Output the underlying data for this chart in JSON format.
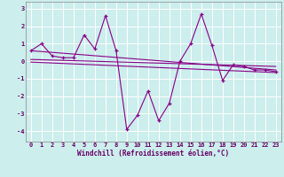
{
  "xlabel": "Windchill (Refroidissement éolien,°C)",
  "background_color": "#cceeed",
  "grid_color": "#ffffff",
  "line_color": "#880088",
  "xlim": [
    -0.5,
    23.5
  ],
  "ylim": [
    -4.6,
    3.4
  ],
  "yticks": [
    -4,
    -3,
    -2,
    -1,
    0,
    1,
    2,
    3
  ],
  "xticks": [
    0,
    1,
    2,
    3,
    4,
    5,
    6,
    7,
    8,
    9,
    10,
    11,
    12,
    13,
    14,
    15,
    16,
    17,
    18,
    19,
    20,
    21,
    22,
    23
  ],
  "series1_x": [
    0,
    1,
    2,
    3,
    4,
    5,
    6,
    7,
    8,
    9,
    10,
    11,
    12,
    13,
    14,
    15,
    16,
    17,
    18,
    19,
    20,
    21,
    22,
    23
  ],
  "series1_y": [
    0.6,
    1.0,
    0.3,
    0.2,
    0.2,
    1.5,
    0.7,
    2.6,
    0.6,
    -3.9,
    -3.1,
    -1.7,
    -3.4,
    -2.4,
    0.0,
    1.0,
    2.7,
    0.9,
    -1.1,
    -0.2,
    -0.3,
    -0.5,
    -0.5,
    -0.6
  ],
  "series2_x": [
    0,
    23
  ],
  "series2_y": [
    0.6,
    -0.5
  ],
  "series3_x": [
    0,
    23
  ],
  "series3_y": [
    0.1,
    -0.3
  ],
  "series4_x": [
    0,
    23
  ],
  "series4_y": [
    -0.05,
    -0.65
  ]
}
